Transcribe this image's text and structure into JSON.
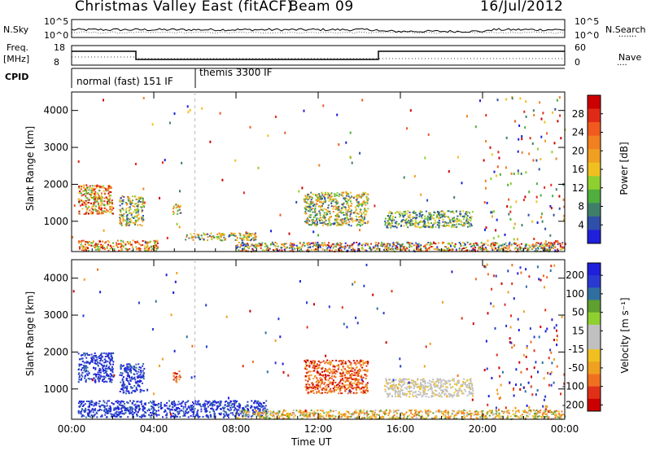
{
  "header": {
    "station": "Christmas Valley East (fitACF)",
    "beam": "Beam 09",
    "date": "16/Jul/2012"
  },
  "top_panels": {
    "nsky_label": "N.Sky",
    "nsky_ticks": [
      "10^5",
      "10^0"
    ],
    "nsearch_label": "N.Search",
    "nsearch_ticks": [
      "10^5",
      "10^0"
    ],
    "freq_label": "Freq.",
    "freq_unit": "[MHz]",
    "freq_ticks": [
      "18",
      "8"
    ],
    "nave_label": "Nave",
    "nave_ticks": [
      "60",
      "0"
    ],
    "cpid_label": "CPID",
    "cpid_segments": [
      "normal (fast) 151 IF",
      "themis 3300 IF"
    ]
  },
  "chart_data": [
    {
      "type": "heatmap",
      "name": "power",
      "xlabel": "Time UT",
      "ylabel": "Slant Range [km]",
      "x_ticks": [
        "00:00",
        "04:00",
        "08:00",
        "12:00",
        "16:00",
        "20:00",
        "00:00"
      ],
      "y_ticks": [
        1000,
        2000,
        3000,
        4000
      ],
      "ylim": [
        180,
        4500
      ],
      "xlim_hours": [
        0,
        24
      ],
      "colorbar": {
        "label": "Power [dB]",
        "ticks": [
          4,
          8,
          12,
          16,
          20,
          24,
          28
        ],
        "range": [
          0,
          32
        ],
        "colors": [
          "#1f1fdc",
          "#2f4fa8",
          "#3f7f6a",
          "#4fae3e",
          "#8fcf2f",
          "#f0c020",
          "#f0a020",
          "#f08020",
          "#f05a1e",
          "#e02a18",
          "#cc0000"
        ]
      },
      "regions": [
        {
          "t": [
            0.3,
            2.0
          ],
          "r": [
            1200,
            2000
          ],
          "level": "high"
        },
        {
          "t": [
            2.3,
            3.5
          ],
          "r": [
            900,
            1700
          ],
          "level": "mid"
        },
        {
          "t": [
            4.9,
            5.3
          ],
          "r": [
            1200,
            1500
          ],
          "level": "mid"
        },
        {
          "t": [
            0.3,
            4.2
          ],
          "r": [
            220,
            500
          ],
          "level": "high"
        },
        {
          "t": [
            5.5,
            9.0
          ],
          "r": [
            500,
            700
          ],
          "level": "mid"
        },
        {
          "t": [
            11.3,
            14.4
          ],
          "r": [
            900,
            1800
          ],
          "level": "mid"
        },
        {
          "t": [
            15.2,
            19.5
          ],
          "r": [
            850,
            1300
          ],
          "level": "low"
        },
        {
          "t": [
            8.0,
            24.0
          ],
          "r": [
            200,
            450
          ],
          "level": "mix"
        }
      ]
    },
    {
      "type": "heatmap",
      "name": "velocity",
      "xlabel": "Time UT",
      "ylabel": "Slant Range [km]",
      "x_ticks": [
        "00:00",
        "04:00",
        "08:00",
        "12:00",
        "16:00",
        "20:00",
        "00:00"
      ],
      "y_ticks": [
        1000,
        2000,
        3000,
        4000
      ],
      "ylim": [
        180,
        4500
      ],
      "xlim_hours": [
        0,
        24
      ],
      "colorbar": {
        "label": "Velocity [m s⁻¹]",
        "ticks": [
          200,
          100,
          50,
          15,
          -15,
          -50,
          -100,
          -200
        ],
        "colors": [
          "#1f1fdc",
          "#2a3ad0",
          "#2f6fa0",
          "#5fa030",
          "#8fcf2f",
          "#c0c0c0",
          "#c0c0c0",
          "#f0c020",
          "#f0a020",
          "#f07020",
          "#e03018",
          "#cc0000"
        ]
      },
      "regions": [
        {
          "t": [
            0.3,
            2.0
          ],
          "r": [
            1200,
            2000
          ],
          "level": "pos"
        },
        {
          "t": [
            2.3,
            3.5
          ],
          "r": [
            900,
            1700
          ],
          "level": "pos"
        },
        {
          "t": [
            4.9,
            5.3
          ],
          "r": [
            1200,
            1500
          ],
          "level": "neg"
        },
        {
          "t": [
            0.3,
            9.5
          ],
          "r": [
            250,
            700
          ],
          "level": "pos"
        },
        {
          "t": [
            11.3,
            14.4
          ],
          "r": [
            900,
            1800
          ],
          "level": "neg"
        },
        {
          "t": [
            15.2,
            19.5
          ],
          "r": [
            800,
            1300
          ],
          "level": "zero"
        },
        {
          "t": [
            8.0,
            24.0
          ],
          "r": [
            200,
            450
          ],
          "level": "negsmall"
        }
      ]
    }
  ],
  "colors": {
    "axis": "#000000",
    "freq_line": "#000000"
  }
}
